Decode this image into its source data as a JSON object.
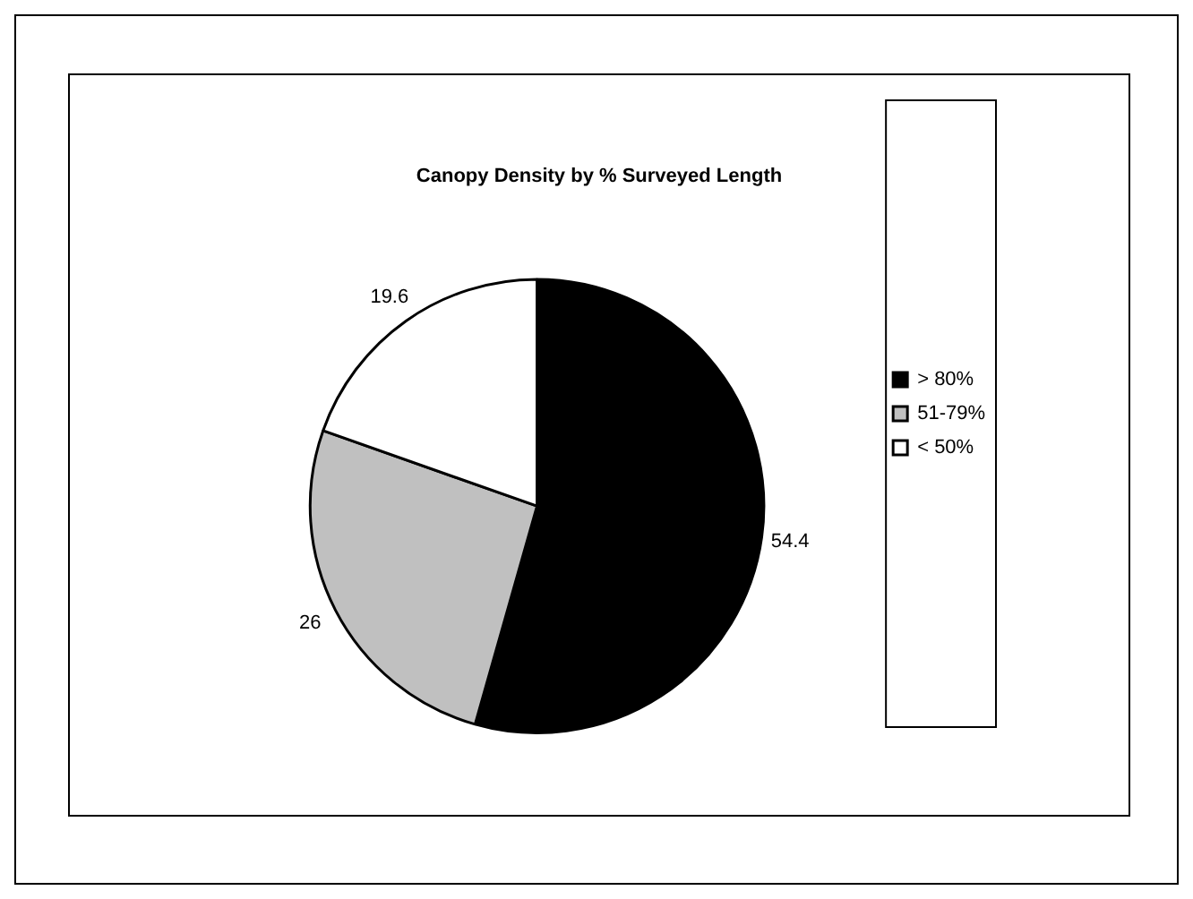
{
  "chart_data": {
    "type": "pie",
    "title": "Canopy Density by % Surveyed Length",
    "categories": [
      "> 80%",
      "51-79%",
      "< 50%"
    ],
    "values": [
      54.4,
      26,
      19.6
    ],
    "colors": [
      "#000000",
      "#c0c0c0",
      "#ffffff"
    ],
    "data_labels": true,
    "legend": "right"
  }
}
